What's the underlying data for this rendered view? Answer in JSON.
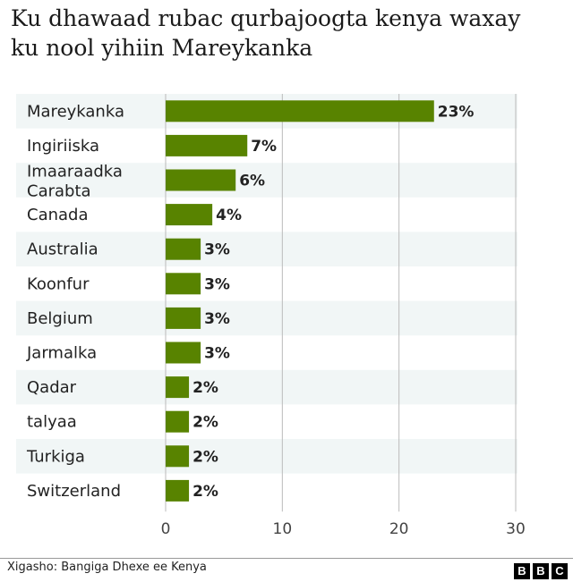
{
  "title": "Ku dhawaad rubac qurbajoogta kenya waxay ku nool yihiin Mareykanka",
  "source": "Xigasho: Bangiga Dhexe ee Kenya",
  "logo_letters": [
    "B",
    "B",
    "C"
  ],
  "colors": {
    "bar": "#588300",
    "band": "#f1f6f6",
    "grid": "#bbbbbb"
  },
  "chart_data": {
    "type": "bar",
    "orientation": "horizontal",
    "categories": [
      "Mareykanka",
      "Ingiriiska",
      "Imaaraadka Carabta",
      "Canada",
      "Australia",
      "Koonfur",
      "Belgium",
      "Jarmalka",
      "Qadar",
      "talyaa",
      "Turkiga",
      "Switzerland"
    ],
    "values": [
      23,
      7,
      6,
      4,
      3,
      3,
      3,
      3,
      2,
      2,
      2,
      2
    ],
    "value_labels": [
      "23%",
      "7%",
      "6%",
      "4%",
      "3%",
      "3%",
      "3%",
      "3%",
      "2%",
      "2%",
      "2%",
      "2%"
    ],
    "xlim": [
      0,
      30
    ],
    "xticks": [
      0,
      10,
      20,
      30
    ],
    "xtick_labels": [
      "0",
      "10",
      "20",
      "30"
    ],
    "grid": true
  }
}
